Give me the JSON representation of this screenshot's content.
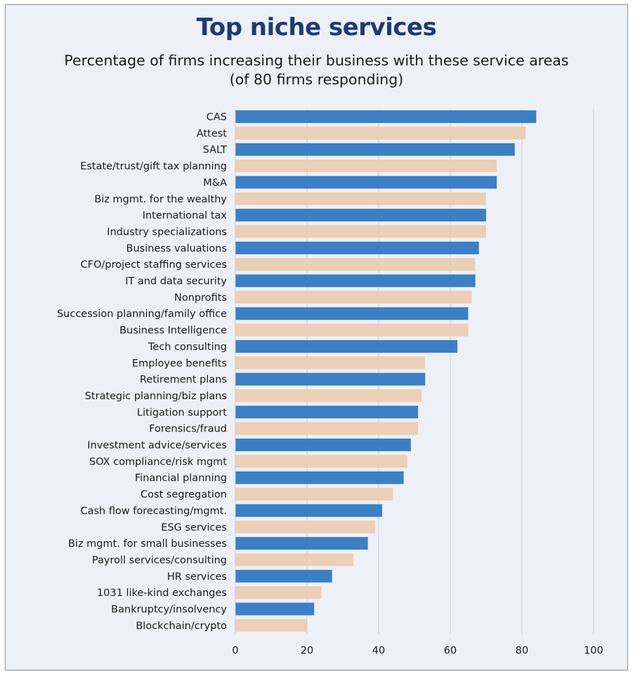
{
  "colors": {
    "primary_bar": "#3d7fc4",
    "secondary_bar": "#ebcfb6",
    "grid": "#c9ccd3",
    "title": "#1d3b78"
  },
  "chart_data": {
    "type": "bar",
    "orientation": "horizontal",
    "title": "Top niche services",
    "subtitle_lines": [
      "Percentage of firms increasing their business with these service areas",
      "(of 80 firms responding)"
    ],
    "categories": [
      "CAS",
      "Attest",
      "SALT",
      "Estate/trust/gift tax planning",
      "M&A",
      "Biz mgmt. for the wealthy",
      "International tax",
      "Industry specializations",
      "Business valuations",
      "CFO/project staffing services",
      "IT and data security",
      "Nonprofits",
      "Succession planning/family office",
      "Business Intelligence",
      "Tech consulting",
      "Employee benefits",
      "Retirement plans",
      "Strategic planning/biz plans",
      "Litigation support",
      "Forensics/fraud",
      "Investment advice/services",
      "SOX compliance/risk mgmt",
      "Financial planning",
      "Cost segregation",
      "Cash flow forecasting/mgmt.",
      "ESG services",
      "Biz mgmt. for small businesses",
      "Payroll services/consulting",
      "HR services",
      "1031 like-kind exchanges",
      "Bankruptcy/insolvency",
      "Blockchain/crypto"
    ],
    "values": [
      84,
      81,
      78,
      73,
      73,
      70,
      70,
      70,
      68,
      67,
      67,
      66,
      65,
      65,
      62,
      53,
      53,
      52,
      51,
      51,
      49,
      48,
      47,
      44,
      41,
      39,
      37,
      33,
      27,
      24,
      22,
      20
    ],
    "xlim": [
      0,
      100
    ],
    "xticks": [
      0,
      20,
      40,
      60,
      80,
      100
    ],
    "xlabel": "",
    "ylabel": "",
    "grid": true,
    "bar_color_pattern": "alternating primary/secondary"
  }
}
